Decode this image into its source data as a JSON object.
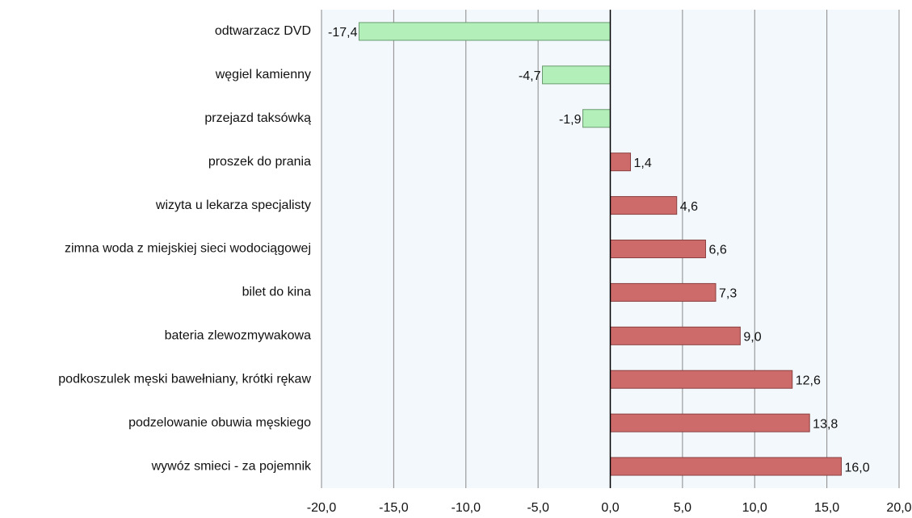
{
  "chart_data": {
    "type": "hbar",
    "categories": [
      "odtwarzacz DVD",
      "węgiel kamienny",
      "przejazd taksówką",
      "proszek do prania",
      "wizyta u lekarza specjalisty",
      "zimna woda z miejskiej sieci wodociągowej",
      "bilet do kina",
      "bateria zlewozmywakowa",
      "podkoszulek męski bawełniany, krótki rękaw",
      "podzelowanie obuwia męskiego",
      "wywóz smieci - za pojemnik"
    ],
    "values": [
      -17.4,
      -4.7,
      -1.9,
      1.4,
      4.6,
      6.6,
      7.3,
      9.0,
      12.6,
      13.8,
      16.0
    ],
    "value_labels": [
      "-17,4",
      "-4,7",
      "-1,9",
      "1,4",
      "4,6",
      "6,6",
      "7,3",
      "9,0",
      "12,6",
      "13,8",
      "16,0"
    ],
    "colors": [
      "#b3f0b9",
      "#b3f0b9",
      "#b3f0b9",
      "#cd6b6b",
      "#cd6b6b",
      "#cd6b6b",
      "#cd6b6b",
      "#cd6b6b",
      "#cd6b6b",
      "#cd6b6b",
      "#cd6b6b"
    ],
    "xlim": [
      -20,
      20
    ],
    "xticks": [
      {
        "value": -20,
        "label": "-20,0"
      },
      {
        "value": -15,
        "label": "-15,0"
      },
      {
        "value": -10,
        "label": "-10,0"
      },
      {
        "value": -5,
        "label": "-5,0"
      },
      {
        "value": 0,
        "label": "0,0"
      },
      {
        "value": 5,
        "label": "5,0"
      },
      {
        "value": 10,
        "label": "10,0"
      },
      {
        "value": 15,
        "label": "15,0"
      },
      {
        "value": 20,
        "label": "20,0"
      }
    ],
    "grid": true
  }
}
